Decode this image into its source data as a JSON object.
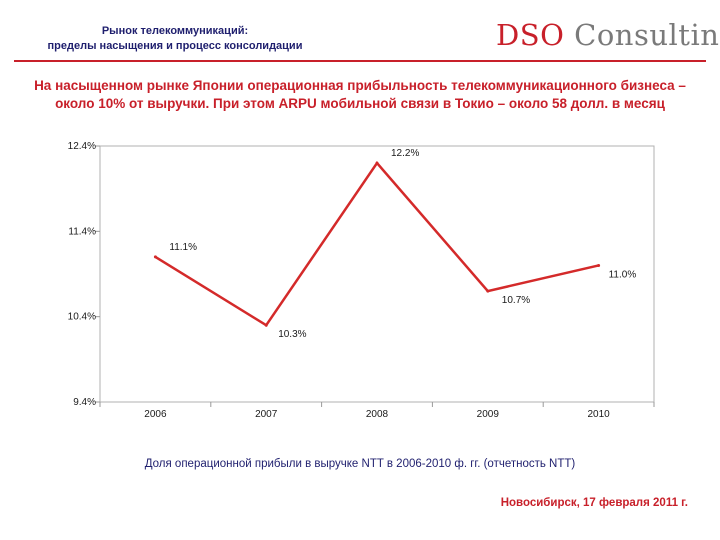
{
  "header": {
    "line1": "Рынок телекоммуникаций:",
    "line2": "пределы насыщения и процесс консолидации"
  },
  "logo": {
    "part1": "DSO",
    "part2": "Consulting"
  },
  "headline": {
    "line1": "На насыщенном рынке Японии операционная прибыльность телекоммуникационного бизнеса –",
    "line2": "около 10% от выручки. При этом ARPU мобильной связи в Токио – около 58 долл. в месяц"
  },
  "colors": {
    "accent": "#c8202a",
    "navy": "#1f1f6e",
    "line": "#d42a2a"
  },
  "chart_data": {
    "type": "line",
    "title": "",
    "xlabel": "",
    "ylabel": "",
    "categories": [
      "2006",
      "2007",
      "2008",
      "2009",
      "2010"
    ],
    "values": [
      11.1,
      10.3,
      12.2,
      10.7,
      11.0
    ],
    "data_labels": [
      "11.1%",
      "10.3%",
      "12.2%",
      "10.7%",
      "11.0%"
    ],
    "y_ticks": [
      12.4,
      11.4,
      10.4,
      9.4
    ],
    "y_tick_labels": [
      "12.4%",
      "11.4%",
      "10.4%",
      "9.4%"
    ],
    "ylim": [
      9.4,
      12.4
    ],
    "grid": false,
    "legend": "none"
  },
  "caption": "Доля операционной прибыли в выручке NTT в 2006-2010 ф. гг. (отчетность NTT)",
  "footer": "Новосибирск, 17 февраля 2011 г."
}
